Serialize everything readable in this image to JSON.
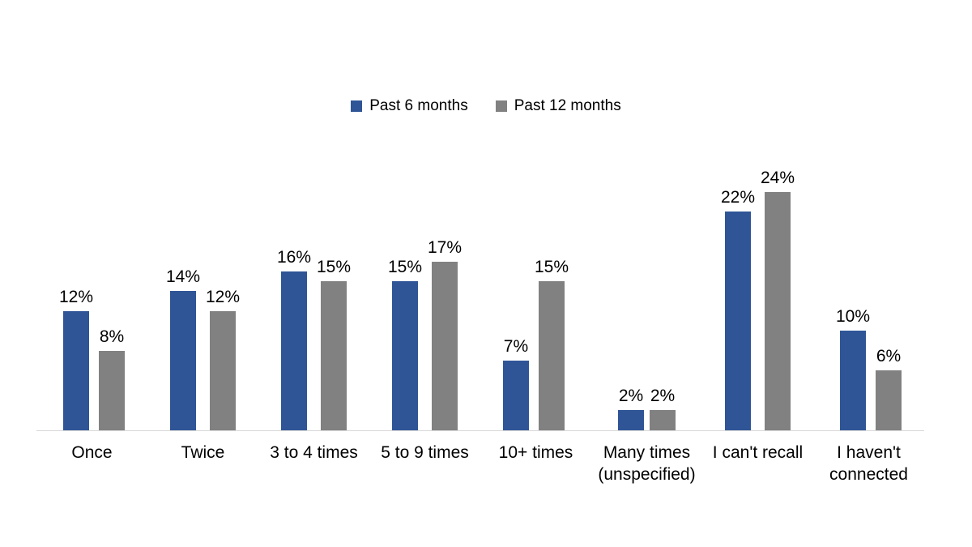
{
  "chart_data": {
    "type": "bar",
    "categories": [
      "Once",
      "Twice",
      "3 to 4 times",
      "5 to 9 times",
      "10+ times",
      "Many times (unspecified)",
      "I can't recall",
      "I haven't connected"
    ],
    "series": [
      {
        "name": "Past 6 months",
        "color": "#2F5597",
        "values": [
          12,
          14,
          16,
          15,
          7,
          2,
          22,
          10
        ]
      },
      {
        "name": "Past 12 months",
        "color": "#818181",
        "values": [
          8,
          12,
          15,
          17,
          15,
          2,
          24,
          6
        ]
      }
    ],
    "data_label_suffix": "%",
    "title": "",
    "xlabel": "",
    "ylabel": "",
    "ylim": [
      0,
      28
    ],
    "grid": false,
    "data_labels": true,
    "legend_position": "top-center",
    "axis_line_color": "#D9D9D9",
    "background": "#FFFFFF",
    "label_color": "#000000"
  }
}
